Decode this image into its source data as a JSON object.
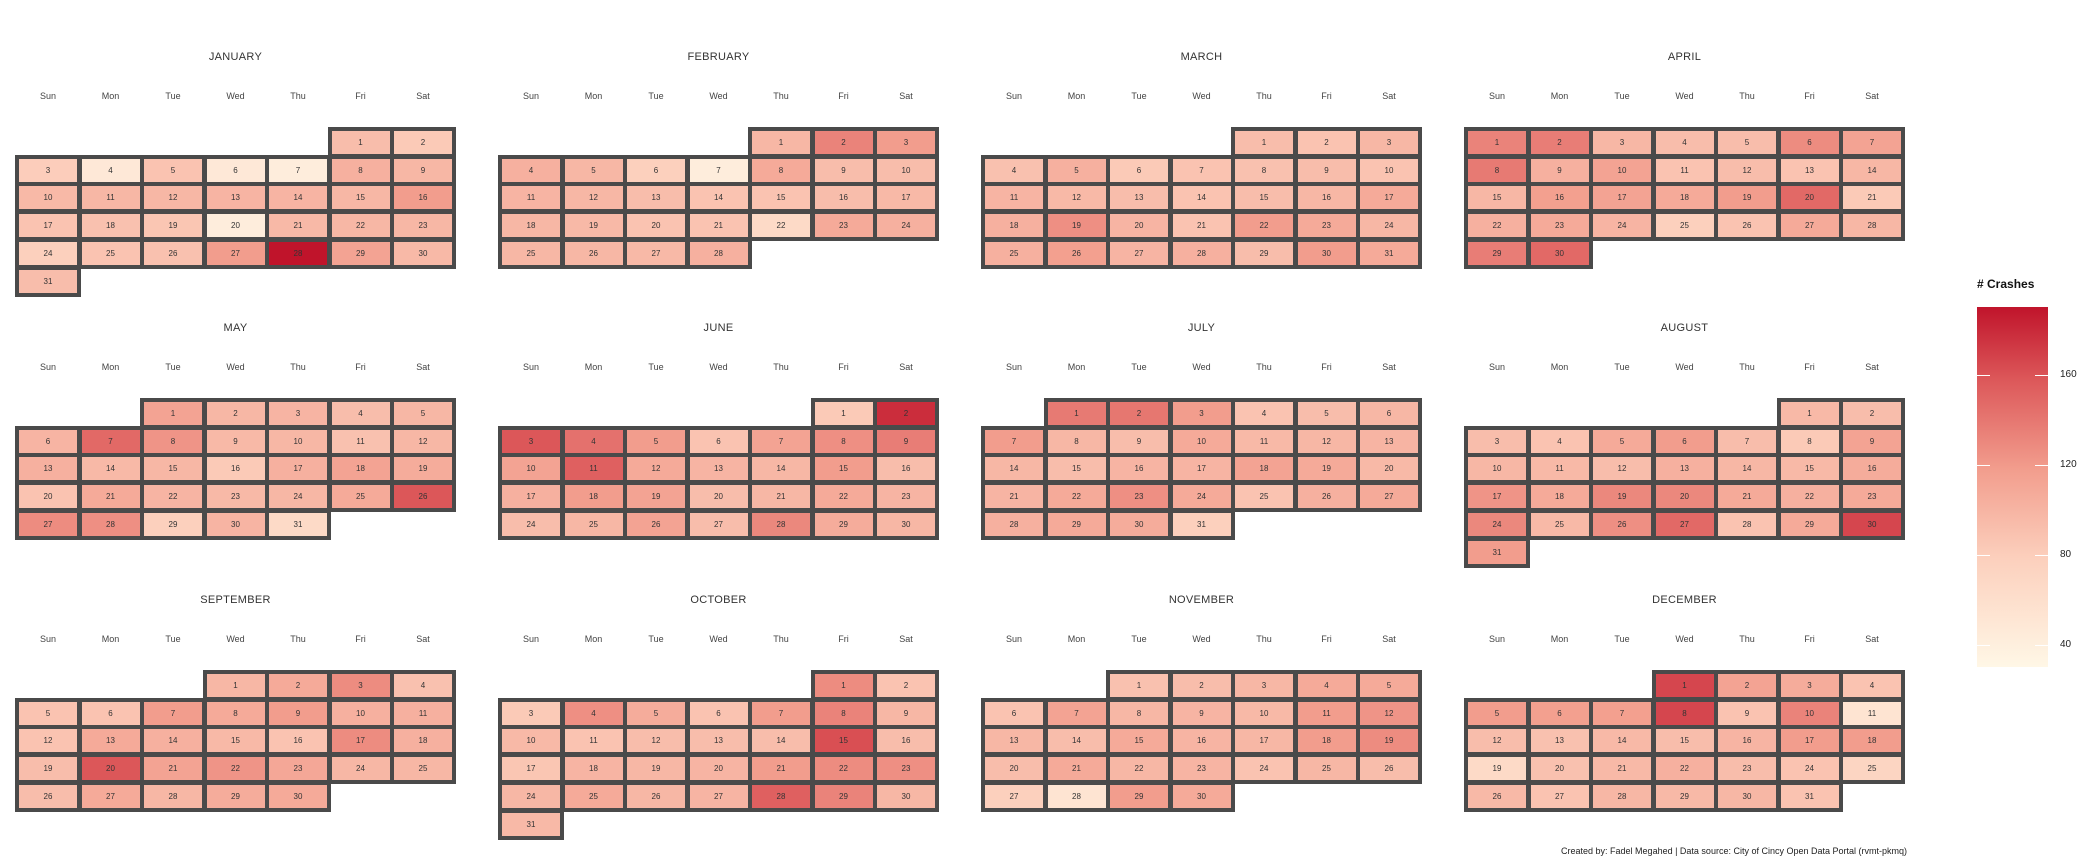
{
  "chart_data": {
    "type": "heatmap",
    "title": "",
    "weekday_labels": [
      "Sun",
      "Mon",
      "Tue",
      "Wed",
      "Thu",
      "Fri",
      "Sat"
    ],
    "legend": {
      "title": "# Crashes",
      "ticks": [
        40,
        80,
        120,
        160
      ],
      "range": [
        30,
        190
      ],
      "colors": [
        "#fff7e6",
        "#fcd0bd",
        "#f29d8d",
        "#dc5759",
        "#c0142b"
      ]
    },
    "caption": "Created by: Fadel Megahed | Data source: City of Cincy Open Data Portal (rvmt-pkmq)",
    "months": [
      {
        "name": "JANUARY",
        "start_dow": 5,
        "days": 31,
        "values": [
          85,
          75,
          72,
          45,
          80,
          45,
          40,
          95,
          90,
          88,
          90,
          90,
          92,
          92,
          90,
          110,
          80,
          82,
          78,
          40,
          88,
          90,
          90,
          70,
          80,
          82,
          110,
          190,
          105,
          88,
          85
        ]
      },
      {
        "name": "FEBRUARY",
        "start_dow": 4,
        "days": 28,
        "values": [
          90,
          125,
          110,
          95,
          90,
          70,
          40,
          100,
          85,
          85,
          92,
          90,
          85,
          80,
          80,
          85,
          88,
          90,
          88,
          80,
          80,
          60,
          100,
          95,
          90,
          90,
          88,
          95
        ]
      },
      {
        "name": "MARCH",
        "start_dow": 4,
        "days": 31,
        "values": [
          85,
          80,
          90,
          82,
          95,
          75,
          80,
          82,
          85,
          80,
          92,
          88,
          85,
          80,
          85,
          90,
          100,
          95,
          118,
          92,
          80,
          110,
          100,
          90,
          95,
          108,
          92,
          95,
          85,
          110,
          100
        ]
      },
      {
        "name": "APRIL",
        "start_dow": 0,
        "days": 30,
        "values": [
          125,
          128,
          90,
          85,
          85,
          120,
          105,
          130,
          95,
          105,
          80,
          85,
          80,
          90,
          90,
          108,
          105,
          100,
          110,
          140,
          75,
          95,
          100,
          92,
          70,
          80,
          100,
          90,
          128,
          140
        ]
      },
      {
        "name": "MAY",
        "start_dow": 2,
        "days": 31,
        "values": [
          105,
          90,
          92,
          85,
          90,
          92,
          140,
          115,
          88,
          90,
          82,
          90,
          95,
          88,
          90,
          75,
          95,
          105,
          98,
          80,
          100,
          92,
          88,
          90,
          100,
          150,
          120,
          118,
          70,
          92,
          60
        ]
      },
      {
        "name": "JUNE",
        "start_dow": 5,
        "days": 30,
        "values": [
          75,
          175,
          150,
          135,
          110,
          80,
          105,
          118,
          128,
          105,
          145,
          100,
          92,
          90,
          110,
          85,
          95,
          110,
          105,
          85,
          90,
          100,
          92,
          85,
          90,
          105,
          85,
          122,
          98,
          90
        ]
      },
      {
        "name": "JULY",
        "start_dow": 1,
        "days": 31,
        "values": [
          130,
          132,
          110,
          80,
          85,
          90,
          110,
          90,
          85,
          100,
          88,
          90,
          92,
          90,
          85,
          92,
          92,
          105,
          100,
          88,
          92,
          100,
          118,
          100,
          80,
          95,
          100,
          95,
          100,
          98,
          70
        ]
      },
      {
        "name": "AUGUST",
        "start_dow": 5,
        "days": 31,
        "values": [
          88,
          85,
          85,
          80,
          100,
          110,
          85,
          75,
          105,
          90,
          88,
          85,
          95,
          90,
          88,
          98,
          115,
          100,
          122,
          122,
          100,
          95,
          100,
          122,
          88,
          118,
          140,
          80,
          100,
          160,
          110
        ]
      },
      {
        "name": "SEPTEMBER",
        "start_dow": 3,
        "days": 30,
        "values": [
          90,
          100,
          120,
          82,
          80,
          80,
          110,
          100,
          110,
          95,
          95,
          80,
          100,
          95,
          88,
          80,
          120,
          95,
          85,
          150,
          105,
          115,
          102,
          90,
          90,
          85,
          100,
          90,
          98,
          100
        ]
      },
      {
        "name": "OCTOBER",
        "start_dow": 5,
        "days": 31,
        "values": [
          120,
          80,
          75,
          118,
          98,
          80,
          110,
          125,
          90,
          88,
          80,
          85,
          85,
          85,
          155,
          85,
          78,
          92,
          90,
          92,
          110,
          120,
          118,
          90,
          100,
          90,
          92,
          145,
          125,
          90,
          88
        ]
      },
      {
        "name": "NOVEMBER",
        "start_dow": 2,
        "days": 30,
        "values": [
          82,
          85,
          90,
          100,
          100,
          80,
          105,
          90,
          92,
          88,
          110,
          115,
          90,
          85,
          100,
          92,
          90,
          110,
          120,
          85,
          100,
          90,
          92,
          80,
          90,
          85,
          70,
          50,
          110,
          100
        ]
      },
      {
        "name": "DECEMBER",
        "start_dow": 3,
        "days": 31,
        "values": [
          160,
          105,
          98,
          80,
          110,
          108,
          108,
          160,
          80,
          125,
          50,
          85,
          82,
          88,
          85,
          92,
          110,
          110,
          60,
          82,
          88,
          95,
          85,
          80,
          65,
          88,
          80,
          90,
          88,
          90,
          80
        ]
      }
    ]
  }
}
